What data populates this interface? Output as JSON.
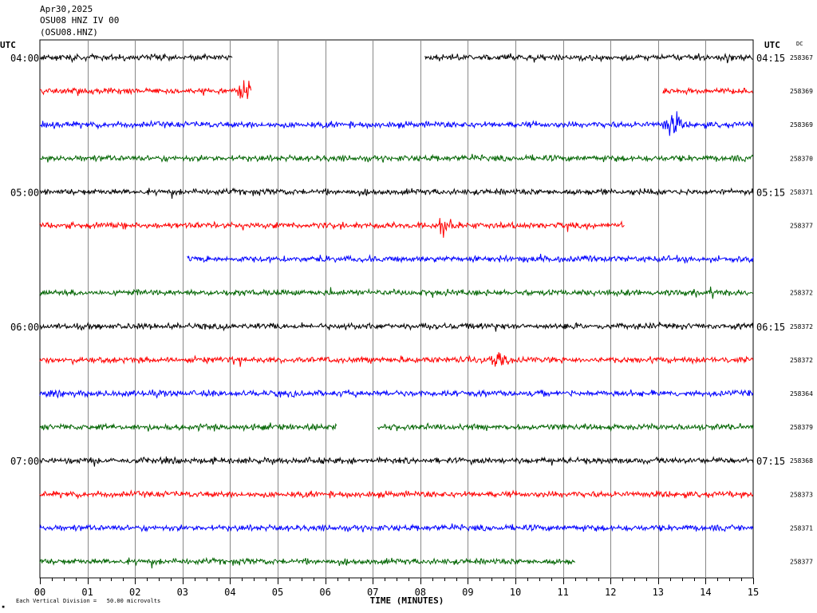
{
  "header": {
    "date": "Apr30,2025",
    "station": "OSU08 HNZ IV 00",
    "code": "(OSU08.HNZ)"
  },
  "left_axis_label": "UTC",
  "right_axis_label": "UTC",
  "dc_label": "DC",
  "x_axis": {
    "title": "TIME (MINUTES)",
    "ticks": [
      "00",
      "01",
      "02",
      "03",
      "04",
      "05",
      "06",
      "07",
      "08",
      "09",
      "10",
      "11",
      "12",
      "13",
      "14",
      "15"
    ]
  },
  "footer": {
    "scale_text": "Each Vertical Division =   50.00 microvolts"
  },
  "chart_data": {
    "type": "line",
    "title": "",
    "xlabel": "TIME (MINUTES)",
    "xlim": [
      0,
      15
    ],
    "grid": true,
    "minutes_per_row": 15,
    "rows": [
      {
        "left_label": "04:00",
        "right_label": "04:15",
        "dc": "258367",
        "color": "#000000",
        "segments": [
          [
            0,
            4.05
          ],
          [
            8.1,
            15
          ]
        ],
        "events": []
      },
      {
        "left_label": "",
        "right_label": "",
        "dc": "258369",
        "color": "#ff0000",
        "segments": [
          [
            0,
            4.45
          ],
          [
            13.1,
            15
          ]
        ],
        "events": [
          [
            4.35,
            22
          ]
        ]
      },
      {
        "left_label": "",
        "right_label": "",
        "dc": "258369",
        "color": "#0000ff",
        "segments": [
          [
            0,
            15
          ]
        ],
        "events": [
          [
            13.3,
            18
          ]
        ]
      },
      {
        "left_label": "",
        "right_label": "",
        "dc": "258370",
        "color": "#006400",
        "segments": [
          [
            0,
            15
          ]
        ],
        "events": []
      },
      {
        "left_label": "05:00",
        "right_label": "05:15",
        "dc": "258371",
        "color": "#000000",
        "segments": [
          [
            0,
            15
          ]
        ],
        "events": []
      },
      {
        "left_label": "",
        "right_label": "",
        "dc": "258377",
        "color": "#ff0000",
        "segments": [
          [
            0,
            12.3
          ]
        ],
        "events": [
          [
            8.5,
            10
          ]
        ]
      },
      {
        "left_label": "",
        "right_label": "",
        "dc": "",
        "color": "#0000ff",
        "segments": [
          [
            3.1,
            15
          ]
        ],
        "events": []
      },
      {
        "left_label": "",
        "right_label": "",
        "dc": "258372",
        "color": "#006400",
        "segments": [
          [
            0,
            15
          ]
        ],
        "events": []
      },
      {
        "left_label": "06:00",
        "right_label": "06:15",
        "dc": "258372",
        "color": "#000000",
        "segments": [
          [
            0,
            15
          ]
        ],
        "events": []
      },
      {
        "left_label": "",
        "right_label": "",
        "dc": "258372",
        "color": "#ff0000",
        "segments": [
          [
            0,
            15
          ]
        ],
        "events": [
          [
            9.65,
            12
          ]
        ]
      },
      {
        "left_label": "",
        "right_label": "",
        "dc": "258364",
        "color": "#0000ff",
        "segments": [
          [
            0,
            15
          ]
        ],
        "events": []
      },
      {
        "left_label": "",
        "right_label": "",
        "dc": "258379",
        "color": "#006400",
        "segments": [
          [
            0,
            6.25
          ],
          [
            7.1,
            15
          ]
        ],
        "events": []
      },
      {
        "left_label": "07:00",
        "right_label": "07:15",
        "dc": "258368",
        "color": "#000000",
        "segments": [
          [
            0,
            15
          ]
        ],
        "events": []
      },
      {
        "left_label": "",
        "right_label": "",
        "dc": "258373",
        "color": "#ff0000",
        "segments": [
          [
            0,
            15
          ]
        ],
        "events": []
      },
      {
        "left_label": "",
        "right_label": "",
        "dc": "258371",
        "color": "#0000ff",
        "segments": [
          [
            0,
            15
          ]
        ],
        "events": []
      },
      {
        "left_label": "",
        "right_label": "",
        "dc": "258377",
        "color": "#006400",
        "segments": [
          [
            0,
            11.25
          ]
        ],
        "events": []
      }
    ]
  }
}
